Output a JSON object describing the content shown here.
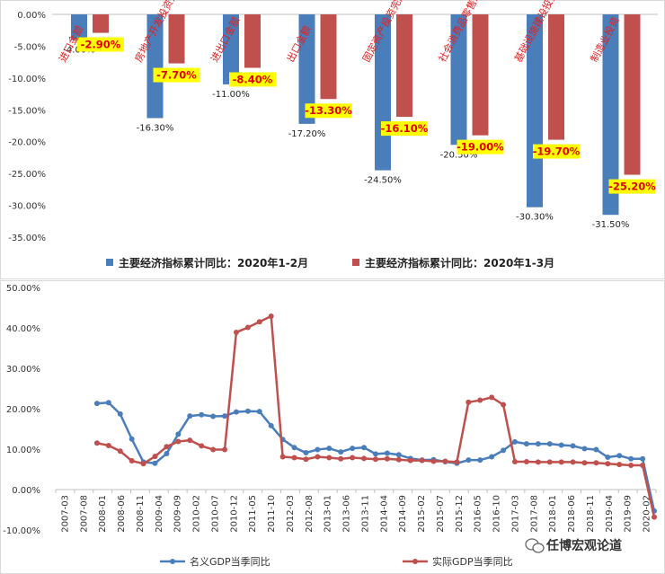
{
  "chart_data": [
    {
      "type": "bar",
      "categories": [
        "进口金额",
        "房地产开发投资完成额",
        "进出口金额",
        "出口金额",
        "固定资产投资完成额",
        "社会消费品零售总额",
        "基础设施建设投资（不含电…",
        "制造业投资"
      ],
      "series": [
        {
          "name": "主要经济指标累计同比：2020年1-2月",
          "values": [
            -4.0,
            -16.3,
            -11.0,
            -17.2,
            -24.5,
            -20.5,
            -30.3,
            -31.5
          ],
          "labels": [
            "-4.00%",
            "-16.30%",
            "-11.00%",
            "-17.20%",
            "-24.50%",
            "-20.50%",
            "-30.30%",
            "-31.50%"
          ],
          "color": "#4a7ebb"
        },
        {
          "name": "主要经济指标累计同比：2020年1-3月",
          "values": [
            -2.9,
            -7.7,
            -8.4,
            -13.3,
            -16.1,
            -19.0,
            -19.7,
            -25.2
          ],
          "labels": [
            "-2.90%",
            "-7.70%",
            "-8.40%",
            "-13.30%",
            "-16.10%",
            "-19.00%",
            "-19.70%",
            "-25.20%"
          ],
          "color": "#c0504d"
        }
      ],
      "yticks": [
        "0.00%",
        "-5.00%",
        "-10.00%",
        "-15.00%",
        "-20.00%",
        "-25.00%",
        "-30.00%",
        "-35.00%"
      ],
      "ylim": [
        -35,
        0
      ],
      "legend_position": "bottom",
      "title": "",
      "xlabel": "",
      "ylabel": ""
    },
    {
      "type": "line",
      "x_ticks": [
        "2007-03",
        "2007-08",
        "2008-01",
        "2008-06",
        "2008-11",
        "2009-04",
        "2009-09",
        "2010-02",
        "2010-07",
        "2010-12",
        "2011-05",
        "2011-10",
        "2012-03",
        "2012-08",
        "2013-01",
        "2013-06",
        "2013-11",
        "2014-04",
        "2014-09",
        "2015-02",
        "2015-07",
        "2015-12",
        "2016-05",
        "2016-10",
        "2017-03",
        "2017-08",
        "2018-01",
        "2018-06",
        "2018-11",
        "2019-04",
        "2019-09",
        "2020-02"
      ],
      "yticks": [
        "50.00%",
        "40.00%",
        "30.00%",
        "20.00%",
        "10.00%",
        "0.00%",
        "-10.00%"
      ],
      "ylim": [
        -10,
        50
      ],
      "series": [
        {
          "name": "名义GDP当季同比",
          "color": "#4a7ebb",
          "values": [
            21.3,
            21.5,
            18.7,
            12.5,
            6.8,
            6.5,
            8.9,
            13.7,
            18.2,
            18.5,
            18.1,
            18.2,
            19.2,
            19.4,
            19.3,
            15.8,
            12.4,
            10.4,
            9.1,
            9.9,
            10.2,
            9.3,
            10.2,
            10.4,
            8.8,
            9.0,
            8.6,
            7.7,
            7.3,
            7.4,
            6.9,
            6.5,
            7.3,
            7.3,
            8.1,
            9.7,
            11.8,
            11.3,
            11.3,
            11.3,
            11.0,
            10.8,
            10.1,
            9.9,
            8.0,
            8.4,
            7.6,
            7.6,
            -5.3
          ]
        },
        {
          "name": "实际GDP当季同比",
          "color": "#c0504d",
          "values": [
            11.5,
            10.9,
            9.5,
            7.1,
            6.4,
            8.2,
            10.6,
            11.9,
            12.2,
            10.8,
            9.9,
            9.9,
            38.9,
            40.1,
            41.5,
            42.9,
            8.1,
            7.9,
            7.5,
            8.1,
            7.9,
            7.6,
            7.9,
            7.7,
            7.5,
            7.6,
            7.4,
            7.2,
            7.2,
            7.0,
            7.0,
            6.8,
            21.6,
            22.1,
            22.8,
            21.0,
            6.9,
            6.9,
            6.8,
            6.8,
            6.8,
            6.8,
            6.6,
            6.6,
            6.4,
            6.2,
            6.0,
            6.0,
            -6.8
          ]
        }
      ],
      "legend_position": "bottom",
      "title": "",
      "xlabel": "",
      "ylabel": ""
    }
  ],
  "watermark": {
    "text": "任博宏观论道",
    "icon": "wechat-icon"
  }
}
